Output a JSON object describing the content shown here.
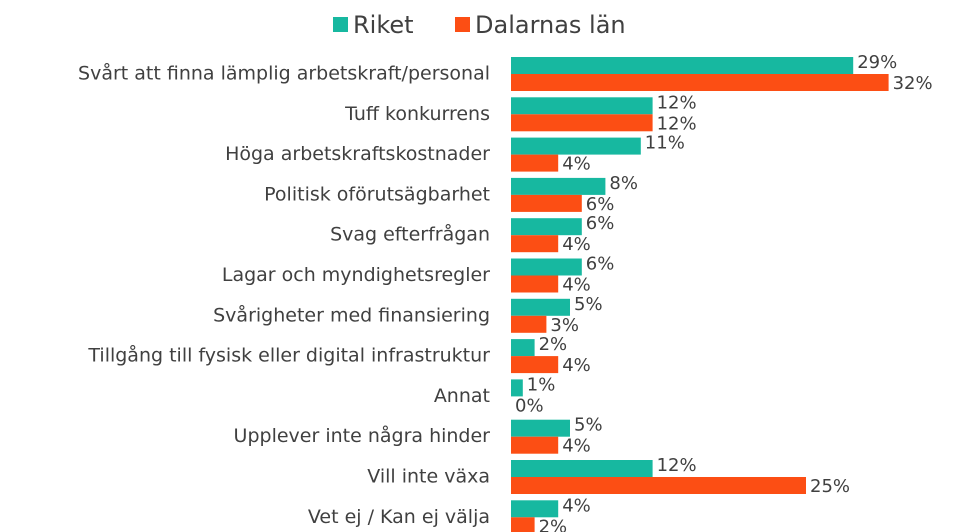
{
  "chart_data": {
    "type": "hbar",
    "categories": [
      "Svårt att finna lämplig arbetskraft/personal",
      "Tuff konkurrens",
      "Höga arbetskraftskostnader",
      "Politisk oförutsägbarhet",
      "Svag efterfrågan",
      "Lagar och myndighetsregler",
      "Svårigheter med finansiering",
      "Tillgång till fysisk eller digital infrastruktur",
      "Annat",
      "Upplever inte några hinder",
      "Vill inte växa",
      "Vet ej / Kan ej välja"
    ],
    "series": [
      {
        "name": "Riket",
        "color": "#17b8a0",
        "values": [
          29,
          12,
          11,
          8,
          6,
          6,
          5,
          2,
          1,
          5,
          12,
          4
        ],
        "value_labels": [
          "29%",
          "12%",
          "11%",
          "8%",
          "6%",
          "6%",
          "5%",
          "2%",
          "1%",
          "5%",
          "12%",
          "4%"
        ]
      },
      {
        "name": "Dalarnas län",
        "color": "#fc4e14",
        "values": [
          32,
          12,
          4,
          6,
          4,
          4,
          3,
          4,
          0,
          4,
          25,
          2
        ],
        "value_labels": [
          "32%",
          "12%",
          "4%",
          "6%",
          "4%",
          "4%",
          "3%",
          "4%",
          "0%",
          "4%",
          "25%",
          "2%"
        ]
      }
    ],
    "legend": "top"
  }
}
